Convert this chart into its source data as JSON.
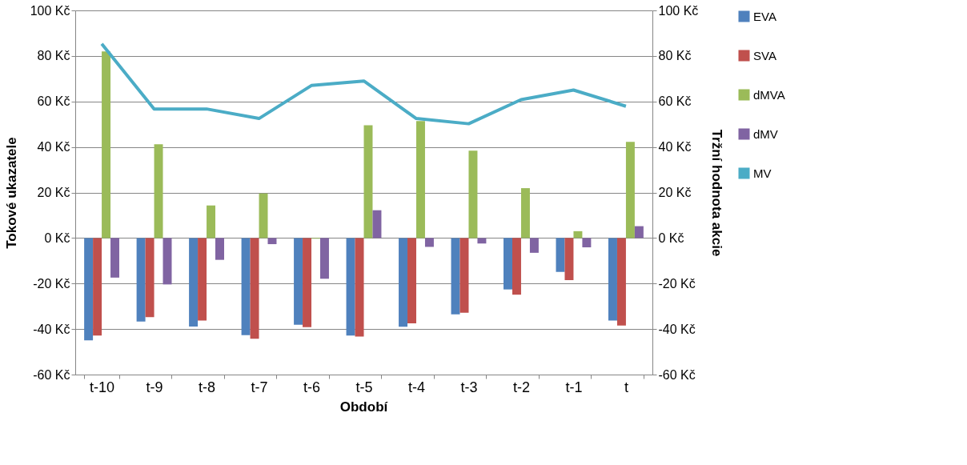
{
  "chart_data": {
    "type": "bar",
    "xlabel": "Období",
    "ylabel": "Tokové ukazatele",
    "y2label": "Tržní hodnota akcie",
    "categories": [
      "t-10",
      "t-9",
      "t-8",
      "t-7",
      "t-6",
      "t-5",
      "t-4",
      "t-3",
      "t-2",
      "t-1",
      "t"
    ],
    "series": [
      {
        "name": "EVA",
        "color": "#4f81bd",
        "values": [
          -45,
          -36.7,
          -38.9,
          -42.7,
          -38.1,
          -42.9,
          -39,
          -33.5,
          -22.6,
          -14.9,
          -36.3
        ]
      },
      {
        "name": "SVA",
        "color": "#c0504d",
        "values": [
          -42.9,
          -34.8,
          -36.3,
          -44.3,
          -39.2,
          -43.3,
          -37.5,
          -32.8,
          -24.9,
          -18.5,
          -38.5
        ]
      },
      {
        "name": "dMVA",
        "color": "#9bbb59",
        "values": [
          82,
          41.2,
          14.3,
          19.6,
          -0.3,
          49.5,
          51.4,
          38.4,
          21.9,
          3,
          42.2
        ]
      },
      {
        "name": "dMV",
        "color": "#8064a2",
        "values": [
          -17.4,
          -20.4,
          -9.6,
          -2.7,
          -17.9,
          12.2,
          -3.9,
          -2.4,
          -6.5,
          -4.1,
          5.2
        ]
      },
      {
        "name": "MV",
        "color": "#4bacc6",
        "type": "line",
        "axis": "y2",
        "values": [
          85.3,
          56.7,
          56.7,
          52.5,
          67,
          69,
          52.5,
          50.2,
          60.8,
          65,
          57.9
        ]
      }
    ],
    "ylim": [
      -60,
      100
    ],
    "yticks": [
      {
        "value": -60,
        "label": "-60 Kč"
      },
      {
        "value": -40,
        "label": "-40 Kč"
      },
      {
        "value": -20,
        "label": "-20 Kč"
      },
      {
        "value": 0,
        "label": "0 Kč"
      },
      {
        "value": 20,
        "label": "20 Kč"
      },
      {
        "value": 40,
        "label": "40 Kč"
      },
      {
        "value": 60,
        "label": "60 Kč"
      },
      {
        "value": 80,
        "label": "80 Kč"
      },
      {
        "value": 100,
        "label": "100 Kč"
      }
    ],
    "y2lim": [
      -60,
      100
    ],
    "y2ticks": [
      {
        "value": -60,
        "label": "-60 Kč"
      },
      {
        "value": -40,
        "label": "-40 Kč"
      },
      {
        "value": -20,
        "label": "-20 Kč"
      },
      {
        "value": 0,
        "label": "0 Kč"
      },
      {
        "value": 20,
        "label": "20 Kč"
      },
      {
        "value": 40,
        "label": "40 Kč"
      },
      {
        "value": 60,
        "label": "60 Kč"
      },
      {
        "value": 80,
        "label": "80 Kč"
      },
      {
        "value": 100,
        "label": "100 Kč"
      }
    ],
    "grid": "y",
    "legend": "right",
    "marker": "none",
    "line_style": "solid"
  }
}
